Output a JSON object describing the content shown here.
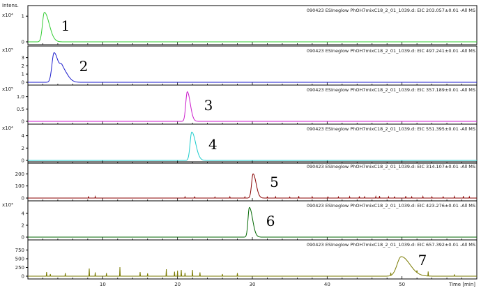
{
  "chart_data": {
    "type": "line",
    "y_axis_title": "Intens.",
    "x_axis": {
      "label": "Time [min]",
      "range": [
        0,
        60
      ],
      "ticks": [
        "10",
        "20",
        "30",
        "40",
        "50"
      ],
      "tick_values": [
        10,
        20,
        30,
        40,
        50
      ]
    },
    "panels": [
      {
        "title": "090423 ESIneglow PhOH7mixC18_2_01_1039.d: EIC 203.057±0.01 -All MS",
        "scale_label": "x10⁴",
        "y_ticks": [
          "1",
          "0"
        ],
        "y_tick_values": [
          1,
          0
        ],
        "ylim": [
          0,
          1.25
        ],
        "color": "#33cc33",
        "peak_number": "1",
        "peaks": [
          {
            "rt": 2.2,
            "height": 1.15,
            "width": 0.25,
            "tail": 0.4
          }
        ],
        "noise": []
      },
      {
        "title": "090423 ESIneglow PhOH7mixC18_2_01_1039.d: EIC 497.241±0.01 -All MS",
        "scale_label": "x10⁵",
        "y_ticks": [
          "3",
          "2",
          "1",
          "0"
        ],
        "y_tick_values": [
          3,
          2,
          1,
          0
        ],
        "ylim": [
          0,
          3.9
        ],
        "color": "#1a1acc",
        "peak_number": "2",
        "peaks": [
          {
            "rt": 3.5,
            "height": 3.6,
            "width": 0.28,
            "tail": 0.3
          },
          {
            "rt": 4.6,
            "height": 1.5,
            "width": 0.3,
            "tail": 0.4
          }
        ],
        "noise": []
      },
      {
        "title": "090423 ESIneglow PhOH7mixC18_2_01_1039.d: EIC 357.189±0.01 -All MS",
        "scale_label": "x10⁵",
        "y_ticks": [
          "1.0",
          "0.5",
          "0"
        ],
        "y_tick_values": [
          1.0,
          0.5,
          0
        ],
        "ylim": [
          0,
          1.3
        ],
        "color": "#cc1acc",
        "peak_number": "3",
        "peaks": [
          {
            "rt": 21.3,
            "height": 1.2,
            "width": 0.2,
            "tail": 0.2
          }
        ],
        "noise": []
      },
      {
        "title": "090423 ESIneglow PhOH7mixC18_2_01_1039.d: EIC 551.395±0.01 -All MS",
        "scale_label": "x10⁴",
        "y_ticks": [
          "4",
          "2",
          "0"
        ],
        "y_tick_values": [
          4,
          2,
          0
        ],
        "ylim": [
          0,
          5.2
        ],
        "color": "#1acccc",
        "peak_number": "4",
        "peaks": [
          {
            "rt": 21.9,
            "height": 4.6,
            "width": 0.22,
            "tail": 0.3
          }
        ],
        "noise": []
      },
      {
        "title": "090423 ESIneglow PhOH7mixC18_2_01_1039.d: EIC 314.107±0.01 -All MS",
        "scale_label": "",
        "y_ticks": [
          "200",
          "100",
          "0"
        ],
        "y_tick_values": [
          200,
          100,
          0
        ],
        "ylim": [
          0,
          265
        ],
        "color": "#880000",
        "peak_number": "5",
        "peaks": [
          {
            "rt": 30.1,
            "height": 200,
            "width": 0.2,
            "tail": 0.2
          }
        ],
        "noise": [
          [
            8.1,
            14
          ],
          [
            9.0,
            12
          ],
          [
            21.0,
            10
          ],
          [
            22.3,
            12
          ],
          [
            25.0,
            8
          ],
          [
            27.0,
            10
          ],
          [
            29.0,
            9
          ],
          [
            32.0,
            12
          ],
          [
            33.1,
            10
          ],
          [
            35.0,
            8
          ],
          [
            36.2,
            15
          ],
          [
            38.0,
            10
          ],
          [
            40.1,
            12
          ],
          [
            41.5,
            9
          ],
          [
            43.0,
            11
          ],
          [
            44.3,
            14
          ],
          [
            45.0,
            10
          ],
          [
            46.5,
            12
          ],
          [
            47.0,
            16
          ],
          [
            48.2,
            10
          ],
          [
            49.0,
            12
          ],
          [
            50.5,
            15
          ],
          [
            51.3,
            10
          ],
          [
            52.8,
            12
          ],
          [
            54.0,
            10
          ],
          [
            55.5,
            13
          ],
          [
            57.0,
            12
          ],
          [
            58.2,
            15
          ],
          [
            59.0,
            10
          ]
        ]
      },
      {
        "title": "090423 ESIneglow PhOH7mixC18_2_01_1039.d: EIC 423.276±0.01 -All MS",
        "scale_label": "x10⁴",
        "y_ticks": [
          "4",
          "2",
          "0"
        ],
        "y_tick_values": [
          4,
          2,
          0
        ],
        "ylim": [
          0,
          5.4
        ],
        "color": "#006600",
        "peak_number": "6",
        "peaks": [
          {
            "rt": 29.6,
            "height": 5.0,
            "width": 0.18,
            "tail": 0.25
          }
        ],
        "noise": []
      },
      {
        "title": "090423 ESIneglow PhOH7mixC18_2_01_1039.d: EIC 657.392±0.01 -All MS",
        "scale_label": "",
        "y_ticks": [
          "750",
          "500",
          "250",
          "0"
        ],
        "y_tick_values": [
          750,
          500,
          250,
          0
        ],
        "ylim": [
          0,
          920
        ],
        "color": "#7a7a00",
        "peak_number": "7",
        "peaks": [
          {
            "rt": 49.9,
            "height": 560,
            "width": 0.55,
            "tail": 0.6
          }
        ],
        "noise": [
          [
            2.5,
            120
          ],
          [
            3.0,
            60
          ],
          [
            5.0,
            90
          ],
          [
            8.2,
            220
          ],
          [
            9.0,
            110
          ],
          [
            10.5,
            90
          ],
          [
            12.3,
            260
          ],
          [
            15.0,
            120
          ],
          [
            16.0,
            80
          ],
          [
            18.5,
            200
          ],
          [
            19.6,
            130
          ],
          [
            20.0,
            160
          ],
          [
            20.5,
            180
          ],
          [
            21.0,
            100
          ],
          [
            22.0,
            180
          ],
          [
            23.0,
            110
          ],
          [
            26.0,
            60
          ],
          [
            28.0,
            90
          ],
          [
            48.5,
            80
          ],
          [
            52.0,
            60
          ],
          [
            53.5,
            130
          ],
          [
            57.0,
            50
          ]
        ]
      }
    ]
  }
}
